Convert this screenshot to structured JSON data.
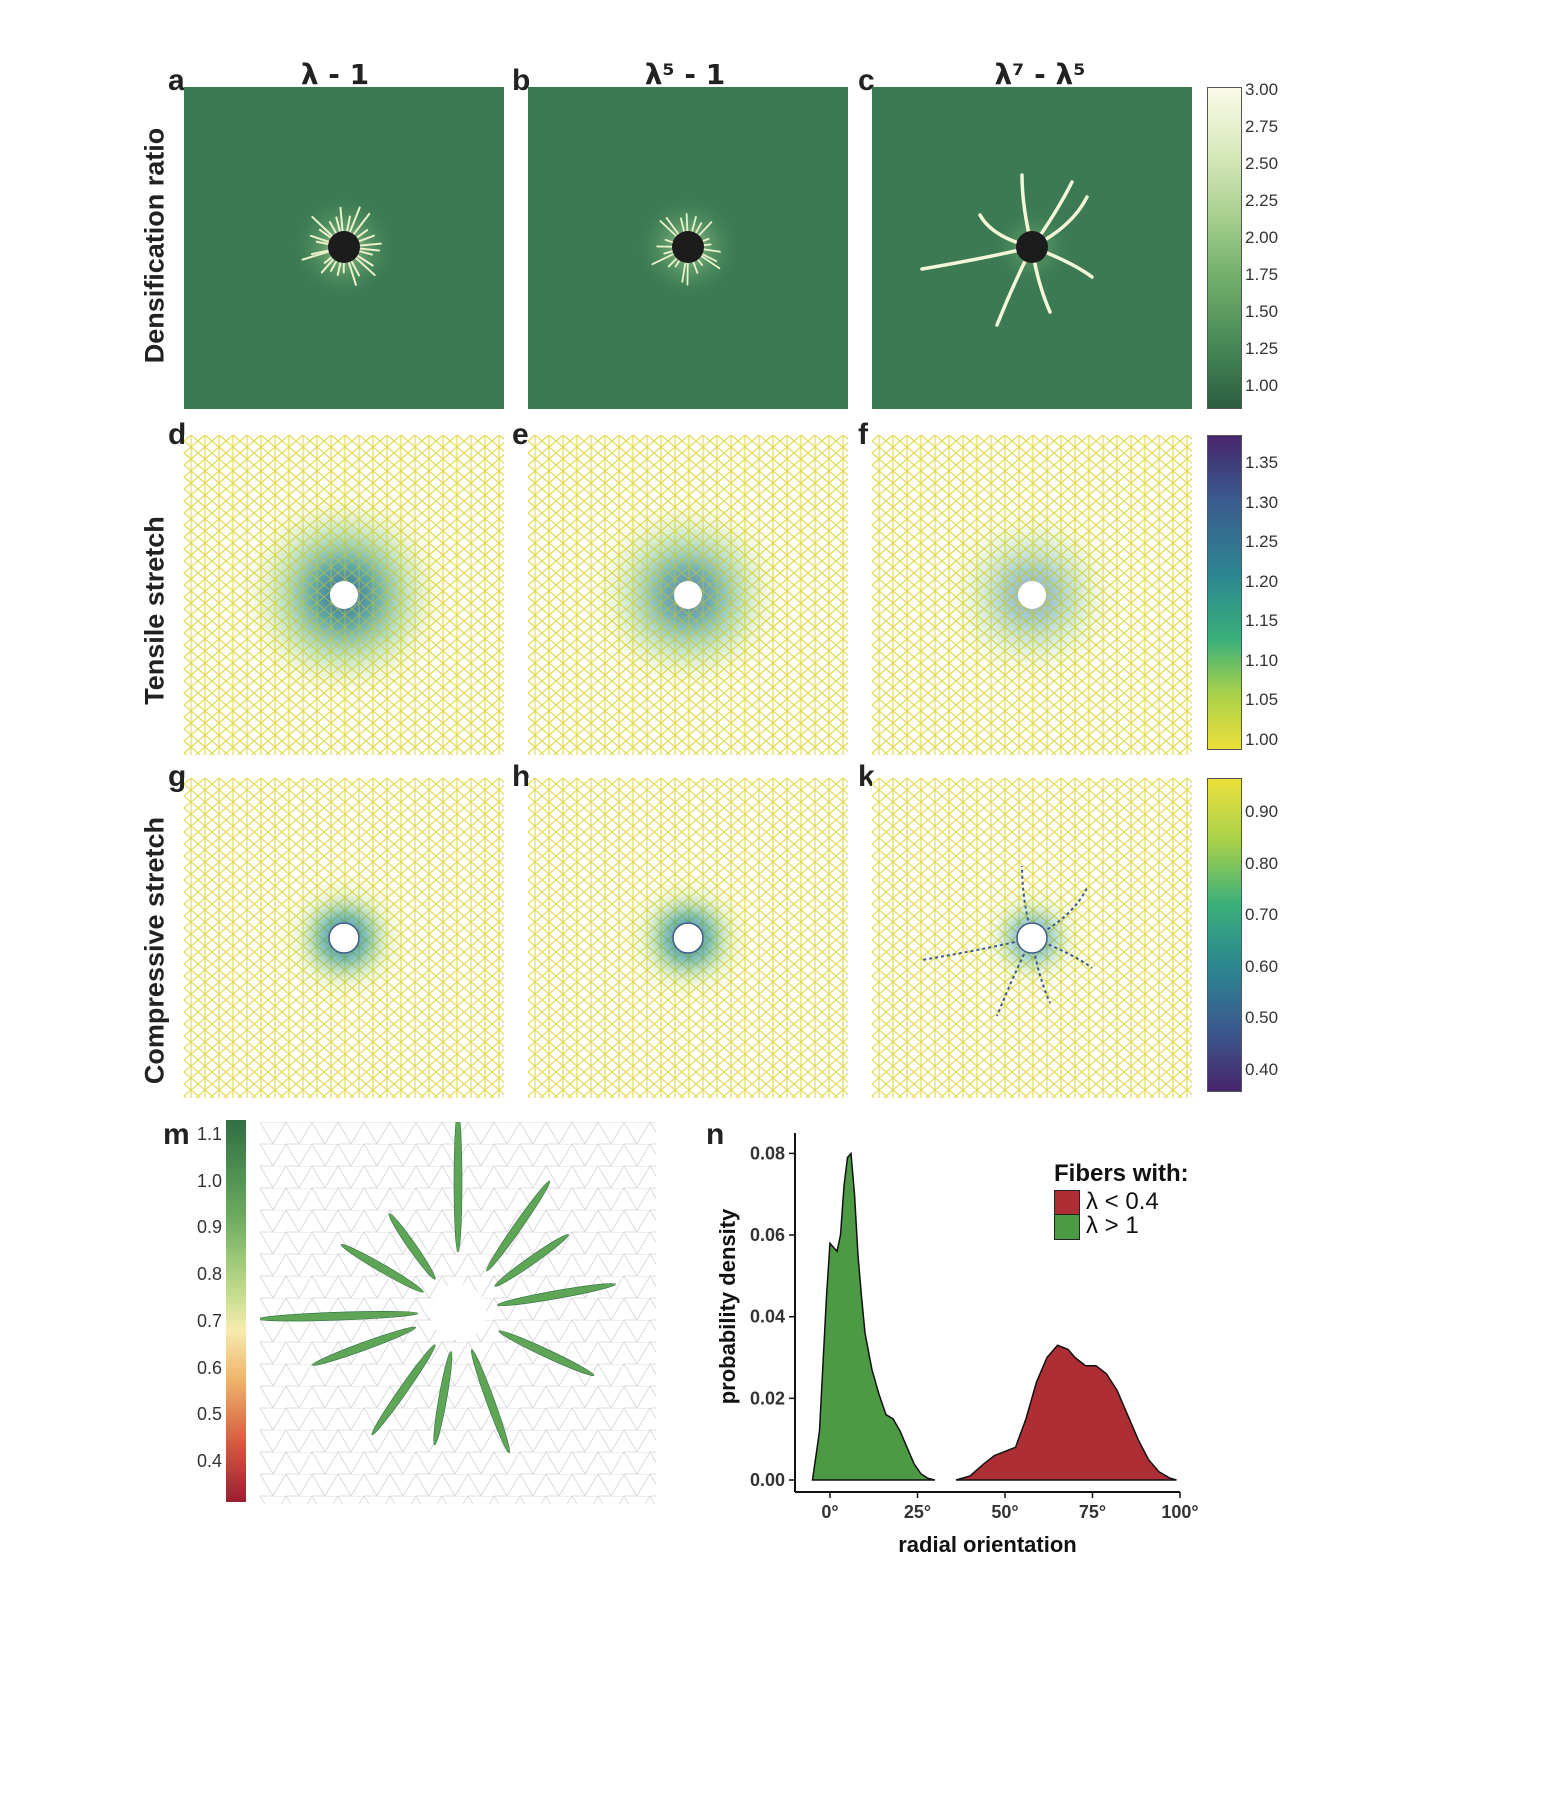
{
  "columns": [
    {
      "letter_top": "a",
      "title": "λ - 1"
    },
    {
      "letter_top": "b",
      "title": "λ⁵ - 1"
    },
    {
      "letter_top": "c",
      "title": "λ⁷ - λ⁵"
    }
  ],
  "rows": [
    {
      "title": "Densification ratio",
      "letters": [
        "a",
        "b",
        "c"
      ]
    },
    {
      "title": "Tensile stretch",
      "letters": [
        "d",
        "e",
        "f"
      ]
    },
    {
      "title": "Compressive stretch",
      "letters": [
        "g",
        "h",
        "k"
      ]
    }
  ],
  "colorbars": {
    "densification": {
      "ticks": [
        "3.00",
        "2.75",
        "2.50",
        "2.25",
        "2.00",
        "1.75",
        "1.50",
        "1.25",
        "1.00"
      ],
      "colors": [
        "#fbfbe8",
        "#d9e9bd",
        "#a8d08e",
        "#6fae6a",
        "#3f7f52",
        "#2c5e3f"
      ]
    },
    "tensile": {
      "ticks": [
        "1.35",
        "1.30",
        "1.25",
        "1.20",
        "1.15",
        "1.10",
        "1.05",
        "1.00"
      ],
      "colors": [
        "#46256b",
        "#3b5a8f",
        "#2c8790",
        "#3bb07a",
        "#a7d14b",
        "#ecdf3a"
      ]
    },
    "compressive": {
      "ticks": [
        "0.90",
        "0.80",
        "0.70",
        "0.60",
        "0.50",
        "0.40"
      ],
      "colors": [
        "#ecdf3a",
        "#a7d14b",
        "#3bb07a",
        "#2c8790",
        "#3b5a8f",
        "#46256b"
      ]
    },
    "m": {
      "ticks": [
        "1.1",
        "1.0",
        "0.9",
        "0.8",
        "0.7",
        "0.6",
        "0.5",
        "0.4"
      ],
      "colors": [
        "#2f6f43",
        "#6aaa5e",
        "#c2dc8b",
        "#f6ebae",
        "#f0b46a",
        "#d8573f",
        "#9b1e33"
      ]
    }
  },
  "panel_m": {
    "letter": "m"
  },
  "panel_n": {
    "letter": "n"
  },
  "chart_data": {
    "type": "area",
    "title": "",
    "xlabel": "radial orientation",
    "ylabel": "probability density",
    "xlim": [
      -10,
      100
    ],
    "ylim": [
      0,
      0.085
    ],
    "xticks": [
      0,
      25,
      50,
      75,
      100
    ],
    "xtick_labels": [
      "0°",
      "25°",
      "50°",
      "75°",
      "100°"
    ],
    "yticks": [
      0.0,
      0.02,
      0.04,
      0.06,
      0.08
    ],
    "ytick_labels": [
      "0.00",
      "0.02",
      "0.04",
      "0.06",
      "0.08"
    ],
    "legend_title": "Fibers with:",
    "legend_position": "top-right",
    "series": [
      {
        "name": "λ > 1",
        "color": "#4d9a45",
        "x": [
          -5,
          -3,
          -1,
          0,
          1,
          2,
          3,
          4,
          5,
          6,
          7,
          8,
          9,
          10,
          12,
          14,
          16,
          18,
          20,
          22,
          24,
          26,
          28,
          30
        ],
        "y": [
          0,
          0.012,
          0.045,
          0.058,
          0.057,
          0.056,
          0.06,
          0.072,
          0.079,
          0.08,
          0.07,
          0.055,
          0.045,
          0.036,
          0.027,
          0.021,
          0.016,
          0.015,
          0.012,
          0.008,
          0.004,
          0.0015,
          0.0004,
          0
        ]
      },
      {
        "name": "λ < 0.4",
        "color": "#ad2f35",
        "x": [
          36,
          40,
          44,
          47,
          50,
          53,
          56,
          59,
          62,
          65,
          68,
          70,
          73,
          76,
          79,
          82,
          85,
          88,
          91,
          94,
          97,
          99
        ],
        "y": [
          0,
          0.001,
          0.004,
          0.006,
          0.007,
          0.008,
          0.015,
          0.024,
          0.03,
          0.033,
          0.032,
          0.03,
          0.028,
          0.028,
          0.026,
          0.022,
          0.016,
          0.01,
          0.005,
          0.002,
          0.0005,
          0
        ]
      }
    ]
  }
}
